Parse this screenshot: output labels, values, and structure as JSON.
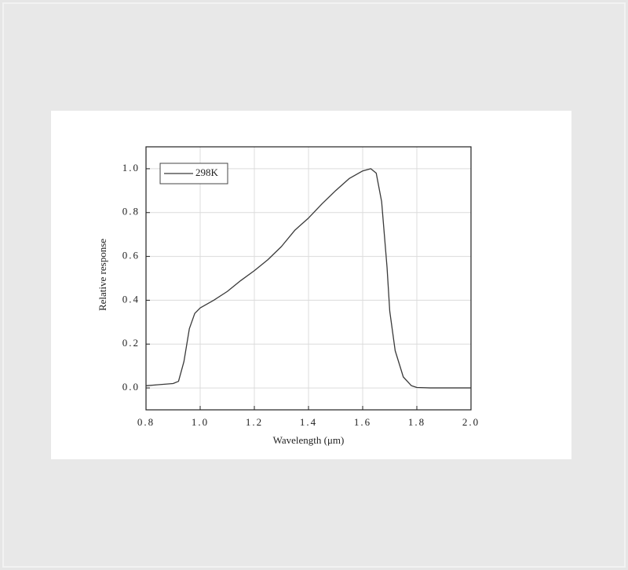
{
  "chart_data": {
    "type": "line",
    "x_label": "Wavelength (μm)",
    "y_label": "Relative response",
    "series": [
      {
        "name": "298K",
        "color": "#3a3a3a",
        "x": [
          0.8,
          0.85,
          0.9,
          0.92,
          0.94,
          0.96,
          0.98,
          1.0,
          1.05,
          1.1,
          1.15,
          1.2,
          1.25,
          1.3,
          1.35,
          1.4,
          1.45,
          1.5,
          1.55,
          1.6,
          1.63,
          1.65,
          1.67,
          1.69,
          1.7,
          1.72,
          1.75,
          1.78,
          1.8,
          1.85,
          2.0
        ],
        "values": [
          0.01,
          0.015,
          0.02,
          0.03,
          0.12,
          0.27,
          0.34,
          0.365,
          0.4,
          0.44,
          0.49,
          0.535,
          0.585,
          0.645,
          0.72,
          0.775,
          0.84,
          0.9,
          0.955,
          0.99,
          1.0,
          0.98,
          0.85,
          0.55,
          0.35,
          0.17,
          0.05,
          0.01,
          0.002,
          0,
          0
        ]
      }
    ],
    "xlim": [
      0.8,
      2.0
    ],
    "xticks": [
      0.8,
      {
        "value": 1,
        "label": "1.0"
      },
      1.2,
      1.4,
      1.6,
      1.8,
      {
        "value": 2,
        "label": "2.0"
      }
    ],
    "ylim": [
      -0.1,
      1.1
    ],
    "yticks": [
      {
        "value": 0,
        "label": "0.0"
      },
      0.2,
      0.4,
      0.6,
      0.8,
      {
        "value": 1,
        "label": "1.0"
      }
    ],
    "grid": true,
    "legend": "upper-left"
  }
}
